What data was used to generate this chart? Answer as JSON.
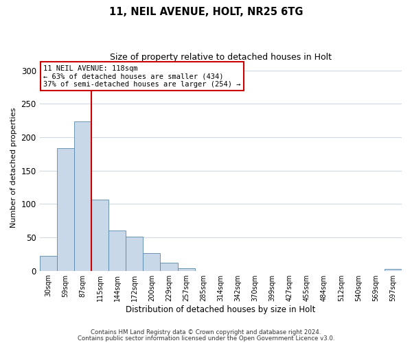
{
  "title1": "11, NEIL AVENUE, HOLT, NR25 6TG",
  "title2": "Size of property relative to detached houses in Holt",
  "xlabel": "Distribution of detached houses by size in Holt",
  "ylabel": "Number of detached properties",
  "bin_labels": [
    "30sqm",
    "59sqm",
    "87sqm",
    "115sqm",
    "144sqm",
    "172sqm",
    "200sqm",
    "229sqm",
    "257sqm",
    "285sqm",
    "314sqm",
    "342sqm",
    "370sqm",
    "399sqm",
    "427sqm",
    "455sqm",
    "484sqm",
    "512sqm",
    "540sqm",
    "569sqm",
    "597sqm"
  ],
  "bar_heights": [
    22,
    184,
    224,
    107,
    60,
    51,
    26,
    12,
    4,
    0,
    0,
    0,
    0,
    0,
    0,
    0,
    0,
    0,
    0,
    0,
    3
  ],
  "bar_color": "#c8d8e8",
  "bar_edge_color": "#5588aa",
  "ylim": [
    0,
    310
  ],
  "yticks": [
    0,
    50,
    100,
    150,
    200,
    250,
    300
  ],
  "vline_color": "#cc0000",
  "vline_pos": 2.5,
  "annotation_lines": [
    "11 NEIL AVENUE: 118sqm",
    "← 63% of detached houses are smaller (434)",
    "37% of semi-detached houses are larger (254) →"
  ],
  "annotation_box_color": "#cc0000",
  "footer1": "Contains HM Land Registry data © Crown copyright and database right 2024.",
  "footer2": "Contains public sector information licensed under the Open Government Licence v3.0.",
  "bg_color": "#ffffff",
  "grid_color": "#d0d8e0"
}
